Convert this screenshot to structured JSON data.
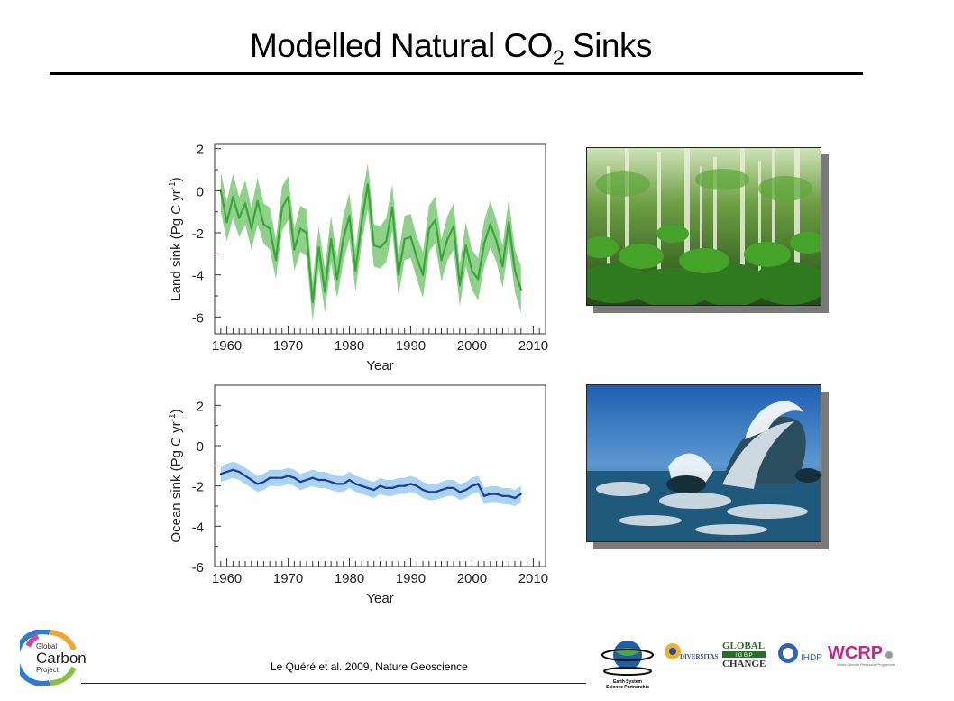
{
  "slide": {
    "title_prefix": "Modelled Natural CO",
    "title_subscript": "2",
    "title_suffix": " Sinks",
    "citation": "Le Quéré et al. 2009, Nature Geoscience"
  },
  "logos": {
    "gcp": {
      "line1": "Global",
      "line2": "Carbon",
      "line3": "Project"
    },
    "partners": [
      "Earth System Science Partnership",
      "DIVERSITAS",
      "GLOBAL IGBP CHANGE",
      "IHDP",
      "WCRP"
    ]
  },
  "photos": [
    {
      "name": "forest",
      "icon": "forest-photo"
    },
    {
      "name": "ocean",
      "icon": "ocean-wave-photo"
    }
  ],
  "chart_data": [
    {
      "type": "line",
      "ylabel": "Land sink (Pg C yr",
      "ylabel_sup": "-1",
      "ylabel_close": ")",
      "xlabel": "Year",
      "xlim": [
        1958,
        2012
      ],
      "ylim": [
        -6.8,
        2.2
      ],
      "xticks": [
        1960,
        1970,
        1980,
        1990,
        2000,
        2010
      ],
      "yticks": [
        -6,
        -4,
        -2,
        0,
        2
      ],
      "grid": false,
      "colors": {
        "line": "#3aa63a",
        "band": "#8fd08a"
      },
      "series": [
        {
          "x": [
            1959,
            1960,
            1961,
            1962,
            1963,
            1964,
            1965,
            1966,
            1967,
            1968,
            1969,
            1970,
            1971,
            1972,
            1973,
            1974,
            1975,
            1976,
            1977,
            1978,
            1979,
            1980,
            1981,
            1982,
            1983,
            1984,
            1985,
            1986,
            1987,
            1988,
            1989,
            1990,
            1991,
            1992,
            1993,
            1994,
            1995,
            1996,
            1997,
            1998,
            1999,
            2000,
            2001,
            2002,
            2003,
            2004,
            2005,
            2006,
            2007,
            2008
          ],
          "values": [
            0.0,
            -1.5,
            -0.3,
            -1.3,
            -0.6,
            -1.8,
            -0.5,
            -1.6,
            -1.8,
            -3.3,
            -0.8,
            -0.3,
            -2.8,
            -1.8,
            -2.0,
            -5.3,
            -2.7,
            -4.8,
            -2.3,
            -4.2,
            -2.3,
            -1.2,
            -3.8,
            -1.5,
            0.3,
            -2.6,
            -2.7,
            -2.4,
            -0.8,
            -4.0,
            -2.3,
            -2.2,
            -3.2,
            -4.0,
            -1.8,
            -1.4,
            -3.3,
            -2.3,
            -1.7,
            -4.5,
            -2.6,
            -3.8,
            -4.2,
            -2.5,
            -1.6,
            -2.4,
            -3.6,
            -1.5,
            -3.8,
            -4.7
          ],
          "lower": [
            -1.0,
            -2.4,
            -1.3,
            -2.2,
            -1.6,
            -2.8,
            -1.6,
            -2.5,
            -2.8,
            -4.2,
            -1.9,
            -1.4,
            -3.8,
            -2.9,
            -3.1,
            -6.2,
            -3.7,
            -5.8,
            -3.4,
            -5.1,
            -3.4,
            -2.3,
            -4.8,
            -2.5,
            -0.9,
            -3.6,
            -3.7,
            -3.4,
            -1.9,
            -5.0,
            -3.3,
            -3.2,
            -4.2,
            -5.1,
            -2.9,
            -2.5,
            -4.3,
            -3.3,
            -2.8,
            -5.5,
            -3.6,
            -4.7,
            -5.2,
            -3.6,
            -2.7,
            -3.4,
            -4.6,
            -2.6,
            -4.8,
            -5.8
          ],
          "upper": [
            0.9,
            -0.5,
            0.8,
            -0.3,
            0.5,
            -0.8,
            0.6,
            -0.6,
            -0.8,
            -2.3,
            0.2,
            0.7,
            -1.8,
            -0.7,
            -0.9,
            -4.3,
            -1.7,
            -3.7,
            -1.2,
            -3.2,
            -1.2,
            -0.1,
            -2.8,
            -0.4,
            1.3,
            -1.6,
            -1.7,
            -1.3,
            0.3,
            -3.0,
            -1.2,
            -1.1,
            -2.2,
            -2.9,
            -0.7,
            -0.3,
            -2.3,
            -1.2,
            -0.6,
            -3.5,
            -1.5,
            -2.8,
            -3.2,
            -1.4,
            -0.5,
            -1.4,
            -2.6,
            -0.4,
            -2.8,
            -3.6
          ]
        }
      ]
    },
    {
      "type": "line",
      "ylabel": "Ocean sink (Pg C yr",
      "ylabel_sup": "-1",
      "ylabel_close": ")",
      "xlabel": "Year",
      "xlim": [
        1958,
        2012
      ],
      "ylim": [
        -6.0,
        3.0
      ],
      "xticks": [
        1960,
        1970,
        1980,
        1990,
        2000,
        2010
      ],
      "yticks": [
        -6,
        -4,
        -2,
        0,
        2
      ],
      "grid": false,
      "colors": {
        "line": "#1f3a93",
        "band": "#a9d3f0"
      },
      "series": [
        {
          "x": [
            1959,
            1960,
            1961,
            1962,
            1963,
            1964,
            1965,
            1966,
            1967,
            1968,
            1969,
            1970,
            1971,
            1972,
            1973,
            1974,
            1975,
            1976,
            1977,
            1978,
            1979,
            1980,
            1981,
            1982,
            1983,
            1984,
            1985,
            1986,
            1987,
            1988,
            1989,
            1990,
            1991,
            1992,
            1993,
            1994,
            1995,
            1996,
            1997,
            1998,
            1999,
            2000,
            2001,
            2002,
            2003,
            2004,
            2005,
            2006,
            2007,
            2008
          ],
          "values": [
            -1.4,
            -1.3,
            -1.2,
            -1.3,
            -1.5,
            -1.7,
            -1.9,
            -1.8,
            -1.6,
            -1.6,
            -1.6,
            -1.5,
            -1.6,
            -1.8,
            -1.7,
            -1.6,
            -1.7,
            -1.7,
            -1.8,
            -1.9,
            -1.9,
            -1.7,
            -1.9,
            -2.0,
            -2.1,
            -2.2,
            -2.0,
            -2.1,
            -2.1,
            -2.0,
            -2.0,
            -1.9,
            -2.0,
            -2.2,
            -2.3,
            -2.3,
            -2.2,
            -2.1,
            -2.1,
            -2.3,
            -2.2,
            -2.0,
            -1.9,
            -2.5,
            -2.4,
            -2.4,
            -2.5,
            -2.5,
            -2.6,
            -2.4
          ],
          "lower": [
            -1.8,
            -1.7,
            -1.6,
            -1.7,
            -1.9,
            -2.1,
            -2.3,
            -2.2,
            -2.0,
            -2.0,
            -2.0,
            -1.9,
            -2.0,
            -2.2,
            -2.1,
            -2.0,
            -2.1,
            -2.1,
            -2.2,
            -2.3,
            -2.3,
            -2.1,
            -2.3,
            -2.4,
            -2.5,
            -2.6,
            -2.4,
            -2.5,
            -2.5,
            -2.4,
            -2.4,
            -2.3,
            -2.4,
            -2.6,
            -2.7,
            -2.7,
            -2.6,
            -2.5,
            -2.5,
            -2.7,
            -2.6,
            -2.4,
            -2.3,
            -2.9,
            -2.8,
            -2.8,
            -2.9,
            -2.9,
            -3.0,
            -2.8
          ],
          "upper": [
            -1.0,
            -0.9,
            -0.8,
            -0.9,
            -1.1,
            -1.3,
            -1.5,
            -1.4,
            -1.2,
            -1.2,
            -1.2,
            -1.1,
            -1.2,
            -1.4,
            -1.3,
            -1.2,
            -1.3,
            -1.3,
            -1.4,
            -1.5,
            -1.5,
            -1.3,
            -1.5,
            -1.6,
            -1.7,
            -1.8,
            -1.6,
            -1.7,
            -1.7,
            -1.6,
            -1.6,
            -1.5,
            -1.6,
            -1.8,
            -1.9,
            -1.9,
            -1.8,
            -1.7,
            -1.7,
            -1.9,
            -1.8,
            -1.6,
            -1.5,
            -2.1,
            -2.0,
            -2.0,
            -2.1,
            -2.1,
            -2.2,
            -2.0
          ]
        }
      ]
    }
  ]
}
